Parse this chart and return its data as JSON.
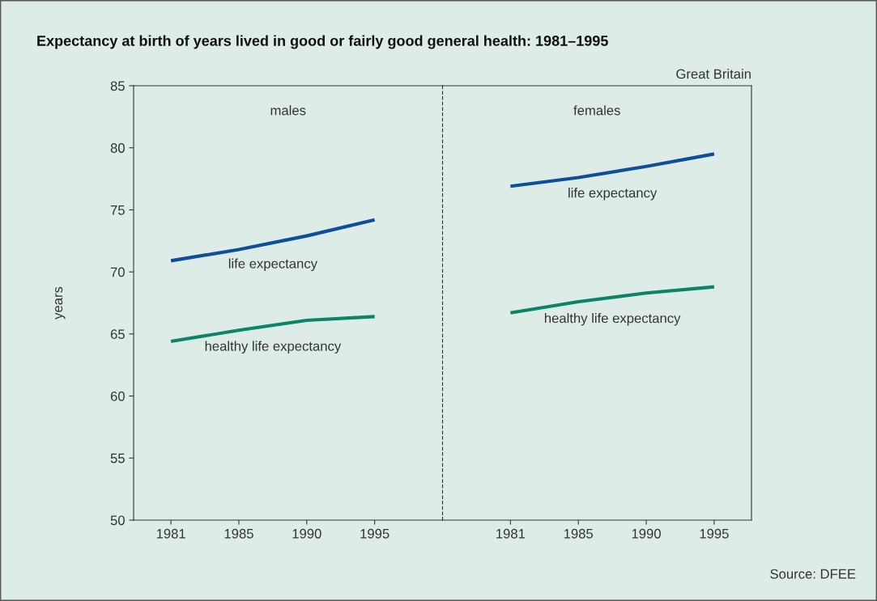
{
  "chart_data": [
    {
      "type": "line",
      "title": "Expectancy at birth of years lived in good or fairly good general health: 1981–1995",
      "subtitle": "males",
      "ylabel": "years",
      "categories": [
        "1981",
        "1985",
        "1990",
        "1995"
      ],
      "ylim": [
        50,
        85
      ],
      "yticks": [
        50,
        55,
        60,
        65,
        70,
        75,
        80,
        85
      ],
      "grid": false,
      "legend": false,
      "marker": "none",
      "line_style": "solid",
      "series": [
        {
          "name": "life expectancy",
          "color": "#0e4f9a",
          "values": [
            70.9,
            71.8,
            72.9,
            74.2
          ]
        },
        {
          "name": "healthy life expectancy",
          "color": "#0b8468",
          "values": [
            64.4,
            65.3,
            66.1,
            66.4
          ]
        }
      ]
    },
    {
      "type": "line",
      "subtitle": "females",
      "categories": [
        "1981",
        "1985",
        "1990",
        "1995"
      ],
      "ylim": [
        50,
        85
      ],
      "tick_labels": "x",
      "grid": false,
      "legend": false,
      "marker": "none",
      "line_style": "solid",
      "annotations": [
        "Great Britain",
        "Source: DFEE"
      ],
      "series": [
        {
          "name": "life expectancy",
          "color": "#0e4f9a",
          "values": [
            76.9,
            77.6,
            78.5,
            79.5
          ]
        },
        {
          "name": "healthy life expectancy",
          "color": "#0b8468",
          "values": [
            66.7,
            67.6,
            68.3,
            68.8
          ]
        }
      ]
    }
  ]
}
